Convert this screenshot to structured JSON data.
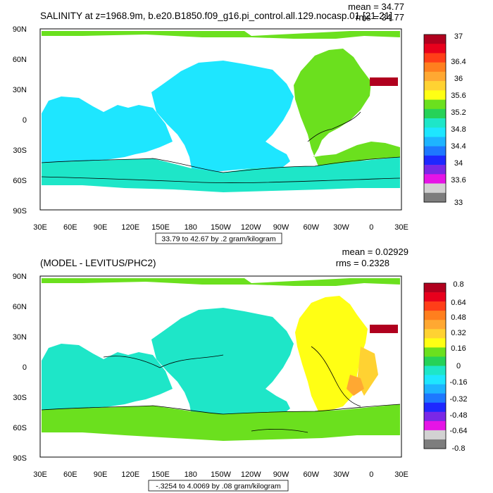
{
  "panels": [
    {
      "title": "SALINITY at z=1968.9m, b.e20.B1850.f09_g16.pi_control.all.129.nocasp.01 [21-21]",
      "stats": {
        "mean": "mean = 34.77",
        "rms": "rms = 34.77"
      },
      "footer": "33.79 to 42.67 by .2 gram/kilogram",
      "lat_labels": [
        "90N",
        "60N",
        "30N",
        "0",
        "30S",
        "60S",
        "90S"
      ],
      "lon_labels": [
        "30E",
        "60E",
        "90E",
        "120E",
        "150E",
        "180",
        "150W",
        "120W",
        "90W",
        "60W",
        "30W",
        "0",
        "30E"
      ],
      "colorbar": {
        "labels": [
          "37",
          "36.4",
          "36",
          "35.6",
          "35.2",
          "34.8",
          "34.4",
          "34",
          "33.6",
          "33"
        ],
        "colors": [
          "#b0001e",
          "#e8001c",
          "#ff3e18",
          "#ff7f1e",
          "#ffa832",
          "#ffd232",
          "#ffff14",
          "#6be01e",
          "#26d258",
          "#1ee6c8",
          "#1ee6ff",
          "#1eb4ff",
          "#1e78ff",
          "#1e28ff",
          "#7a28e6",
          "#e614e6",
          "#d2d2d2",
          "#7d7d7d"
        ]
      },
      "fill_colors": {
        "pacific": "#1ee6ff",
        "atlantic": "#6be01e",
        "southern": "#1ee6c8",
        "indian": "#1ee6ff",
        "arctic": "#6be01e",
        "med": "#b0001e"
      }
    },
    {
      "title": "(MODEL - LEVITUS/PHC2)",
      "stats": {
        "mean": "mean = 0.02929",
        "rms": "rms = 0.2328"
      },
      "footer": "-.3254 to 4.0069 by .08 gram/kilogram",
      "lat_labels": [
        "90N",
        "60N",
        "30N",
        "0",
        "30S",
        "60S",
        "90S"
      ],
      "lon_labels": [
        "30E",
        "60E",
        "90E",
        "120E",
        "150E",
        "180",
        "150W",
        "120W",
        "90W",
        "60W",
        "30W",
        "0",
        "30E"
      ],
      "colorbar": {
        "labels": [
          "0.8",
          "0.64",
          "0.48",
          "0.32",
          "0.16",
          "0",
          "-0.16",
          "-0.32",
          "-0.48",
          "-0.64",
          "-0.8"
        ],
        "colors": [
          "#b0001e",
          "#e8001c",
          "#ff3e18",
          "#ff7f1e",
          "#ffa832",
          "#ffd232",
          "#ffff14",
          "#6be01e",
          "#26d258",
          "#1ee6c8",
          "#1ee6ff",
          "#1eb4ff",
          "#1e78ff",
          "#1e28ff",
          "#7a28e6",
          "#e614e6",
          "#d2d2d2",
          "#7d7d7d"
        ]
      },
      "fill_colors": {
        "pacific": "#1ee6c8",
        "atlantic": "#ffff14",
        "southern": "#6be01e",
        "indian": "#1ee6c8",
        "arctic": "#6be01e",
        "med": "#b0001e"
      }
    }
  ]
}
